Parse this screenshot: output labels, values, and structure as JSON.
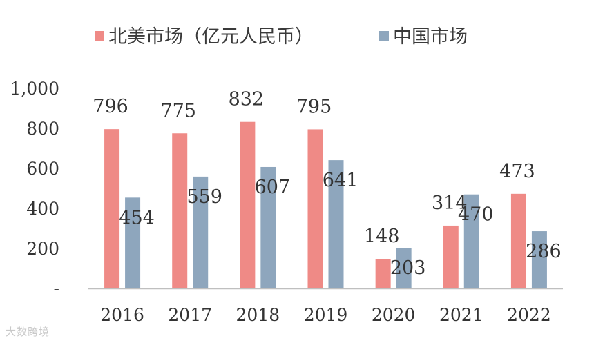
{
  "chart_data": {
    "type": "bar",
    "categories": [
      "2016",
      "2017",
      "2018",
      "2019",
      "2020",
      "2021",
      "2022"
    ],
    "series": [
      {
        "name": "北美市场（亿元人民币）",
        "color": "#ef8a86",
        "values": [
          796,
          775,
          832,
          795,
          148,
          314,
          473
        ],
        "labels": [
          "796",
          "775",
          "832",
          "795",
          "148",
          "314",
          "473"
        ]
      },
      {
        "name": "中国市场",
        "color": "#8ea6bd",
        "values": [
          454,
          559,
          607,
          641,
          203,
          470,
          286
        ],
        "labels": [
          "454",
          "559",
          "607",
          "641",
          "203",
          "470",
          "286"
        ]
      }
    ],
    "yticks": [
      0,
      200,
      400,
      600,
      800,
      1000
    ],
    "ytick_labels": [
      "-",
      "200",
      "400",
      "600",
      "800",
      "1,000"
    ],
    "ylim": [
      0,
      1000
    ],
    "grid": false,
    "legend": "top"
  },
  "watermark": "大数跨境"
}
